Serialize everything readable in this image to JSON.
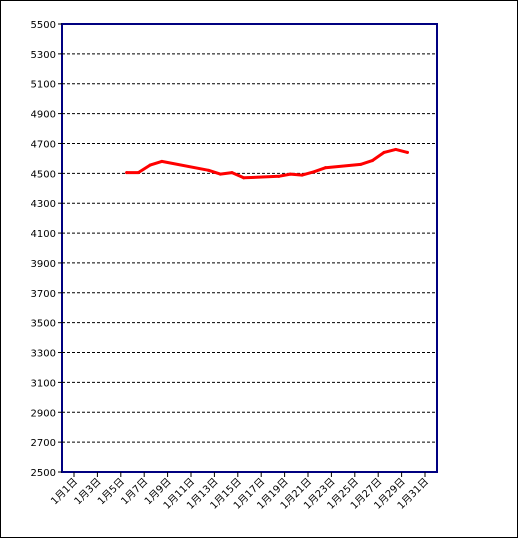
{
  "chart_data": {
    "type": "line",
    "title": "",
    "xlabel": "",
    "ylabel": "",
    "ylim": [
      2500,
      5500
    ],
    "yticks": [
      2500,
      2700,
      2900,
      3100,
      3300,
      3500,
      3700,
      3900,
      4100,
      4300,
      4500,
      4700,
      4900,
      5100,
      5300,
      5500
    ],
    "xlim": [
      1,
      31
    ],
    "xticks": [
      1,
      3,
      5,
      7,
      9,
      11,
      13,
      15,
      17,
      19,
      21,
      23,
      25,
      27,
      29,
      31
    ],
    "xtick_labels": [
      "1月1日",
      "1月3日",
      "1月5日",
      "1月7日",
      "1月9日",
      "1月11日",
      "1月13日",
      "1月15日",
      "1月17日",
      "1月19日",
      "1月21日",
      "1月23日",
      "1月25日",
      "1月27日",
      "1月29日",
      "1月31日"
    ],
    "grid": "horizontal dashed",
    "legend": "none",
    "series": [
      {
        "color": "#ff0000",
        "x": [
          5.5,
          6.5,
          7.5,
          8.5,
          12.5,
          13.5,
          14.5,
          15.5,
          18.5,
          19.5,
          20.5,
          21.5,
          22.5,
          25.5,
          26.5,
          27.5,
          28.5,
          29.5
        ],
        "values": [
          4505,
          4505,
          4555,
          4580,
          4520,
          4495,
          4505,
          4470,
          4480,
          4495,
          4488,
          4510,
          4538,
          4560,
          4585,
          4640,
          4660,
          4640
        ]
      }
    ]
  }
}
